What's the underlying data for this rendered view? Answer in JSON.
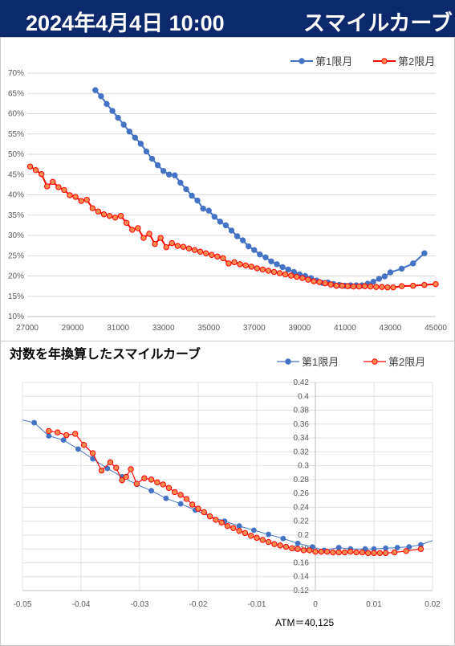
{
  "header": {
    "date": "2024年4月4日 10:00",
    "title": "スマイルカーブ"
  },
  "colors": {
    "header_bg": "#0c2a6b",
    "series1": "#4472c4",
    "series2": "#ff0000",
    "series2_fill": "#ff8a50"
  },
  "chart_data": [
    {
      "type": "line",
      "title": "",
      "x_ticks": [
        "27000",
        "29000",
        "31000",
        "33000",
        "35000",
        "37000",
        "39000",
        "41000",
        "43000",
        "45000"
      ],
      "y_ticks": [
        "10%",
        "15%",
        "20%",
        "25%",
        "30%",
        "35%",
        "40%",
        "45%",
        "50%",
        "55%",
        "60%",
        "65%",
        "70%"
      ],
      "xlim": [
        27000,
        45000
      ],
      "ylim": [
        10,
        70
      ],
      "grid": true,
      "legend": "top-right",
      "series": [
        {
          "name": "第1限月",
          "x": [
            30000,
            30250,
            30500,
            30750,
            31000,
            31250,
            31500,
            31750,
            32000,
            32250,
            32500,
            32750,
            33000,
            33250,
            33500,
            33750,
            34000,
            34250,
            34500,
            34750,
            35000,
            35250,
            35500,
            35750,
            36000,
            36250,
            36500,
            36750,
            37000,
            37250,
            37500,
            37750,
            38000,
            38250,
            38500,
            38750,
            39000,
            39250,
            39500,
            39750,
            40000,
            40250,
            40500,
            40750,
            41000,
            41250,
            41500,
            41750,
            42000,
            42250,
            42500,
            42750,
            43000,
            43500,
            44000,
            44500
          ],
          "y": [
            65.8,
            64.3,
            62.4,
            60.7,
            59.0,
            57.3,
            55.6,
            54.1,
            52.6,
            50.7,
            48.9,
            47.3,
            45.9,
            45.0,
            44.8,
            43.0,
            41.4,
            39.8,
            38.6,
            36.6,
            36.1,
            34.6,
            33.4,
            32.5,
            31.2,
            29.8,
            28.8,
            27.3,
            26.4,
            25.3,
            24.6,
            23.6,
            22.9,
            22.2,
            21.6,
            21.0,
            20.4,
            20.0,
            19.5,
            18.9,
            18.3,
            18.4,
            18.0,
            17.8,
            17.6,
            17.7,
            17.7,
            17.7,
            18.1,
            18.6,
            19.3,
            19.9,
            20.9,
            21.8,
            23.1,
            25.6
          ]
        },
        {
          "name": "第2限月",
          "x": [
            27125,
            27375,
            27625,
            27875,
            28125,
            28375,
            28625,
            28875,
            29125,
            29375,
            29625,
            29875,
            30125,
            30375,
            30625,
            30875,
            31125,
            31375,
            31625,
            31875,
            32125,
            32375,
            32625,
            32875,
            33125,
            33375,
            33625,
            33875,
            34125,
            34375,
            34625,
            34875,
            35125,
            35375,
            35625,
            35875,
            36125,
            36375,
            36625,
            36875,
            37125,
            37375,
            37625,
            37875,
            38125,
            38375,
            38625,
            38875,
            39125,
            39375,
            39625,
            39875,
            40125,
            40375,
            40625,
            40875,
            41125,
            41375,
            41625,
            41875,
            42125,
            42375,
            42625,
            42875,
            43125,
            43500,
            44000,
            44500,
            45000
          ],
          "y": [
            47.0,
            46.1,
            45.1,
            42.1,
            43.2,
            41.9,
            41.2,
            39.9,
            39.5,
            38.5,
            38.8,
            36.7,
            35.9,
            35.2,
            34.8,
            34.4,
            34.8,
            33.1,
            31.4,
            31.8,
            29.4,
            30.4,
            27.9,
            29.4,
            27.1,
            28.1,
            27.4,
            27.2,
            26.8,
            26.4,
            26.0,
            25.6,
            25.2,
            24.8,
            24.4,
            23.1,
            23.4,
            22.9,
            22.6,
            22.3,
            21.9,
            21.6,
            21.3,
            21.0,
            20.7,
            20.4,
            20.1,
            19.8,
            19.5,
            19.1,
            18.7,
            18.5,
            18.2,
            17.9,
            17.6,
            17.6,
            17.5,
            17.4,
            17.4,
            17.5,
            17.4,
            17.3,
            17.3,
            17.2,
            17.2,
            17.5,
            17.6,
            17.8,
            18.0
          ]
        }
      ]
    },
    {
      "type": "scatter",
      "title": "対数を年換算したスマイルカーブ",
      "x_ticks": [
        "-0.05",
        "-0.04",
        "-0.03",
        "-0.02",
        "-0.01",
        "0",
        "0.01",
        "0.02"
      ],
      "y_ticks": [
        "0.12",
        "0.14",
        "0.16",
        "0.18",
        "0.2",
        "0.22",
        "0.24",
        "0.26",
        "0.28",
        "0.3",
        "0.32",
        "0.34",
        "0.36",
        "0.38",
        "0.4",
        "0.42"
      ],
      "xlim": [
        -0.05,
        0.02
      ],
      "ylim": [
        0.12,
        0.42
      ],
      "grid": true,
      "legend": "top-right",
      "annotation": "ATM＝40,125",
      "series": [
        {
          "name": "第1限月",
          "x": [
            -0.048,
            -0.0455,
            -0.043,
            -0.0405,
            -0.038,
            -0.0355,
            -0.033,
            -0.0305,
            -0.028,
            -0.0255,
            -0.023,
            -0.0205,
            -0.018,
            -0.0155,
            -0.013,
            -0.0105,
            -0.008,
            -0.0055,
            -0.003,
            -0.0005,
            0.0015,
            0.004,
            0.006,
            0.0085,
            0.01,
            0.012,
            0.014,
            0.016,
            0.018
          ],
          "y": [
            0.362,
            0.343,
            0.337,
            0.324,
            0.31,
            0.296,
            0.284,
            0.273,
            0.264,
            0.253,
            0.245,
            0.236,
            0.227,
            0.22,
            0.213,
            0.207,
            0.201,
            0.195,
            0.188,
            0.183,
            0.178,
            0.182,
            0.18,
            0.18,
            0.18,
            0.181,
            0.182,
            0.183,
            0.186
          ]
        },
        {
          "name": "第2限月",
          "x": [
            -0.0455,
            -0.044,
            -0.0425,
            -0.041,
            -0.0395,
            -0.038,
            -0.0365,
            -0.035,
            -0.034,
            -0.033,
            -0.0323,
            -0.0315,
            -0.0305,
            -0.0292,
            -0.028,
            -0.027,
            -0.026,
            -0.025,
            -0.024,
            -0.023,
            -0.022,
            -0.021,
            -0.02,
            -0.019,
            -0.018,
            -0.017,
            -0.016,
            -0.015,
            -0.014,
            -0.013,
            -0.012,
            -0.011,
            -0.01,
            -0.009,
            -0.008,
            -0.007,
            -0.006,
            -0.005,
            -0.004,
            -0.003,
            -0.002,
            -0.001,
            0.0,
            0.001,
            0.002,
            0.003,
            0.004,
            0.005,
            0.006,
            0.007,
            0.008,
            0.009,
            0.01,
            0.011,
            0.012,
            0.0135,
            0.0155,
            0.018
          ],
          "y": [
            0.35,
            0.348,
            0.344,
            0.346,
            0.33,
            0.318,
            0.293,
            0.305,
            0.297,
            0.279,
            0.284,
            0.295,
            0.274,
            0.282,
            0.28,
            0.276,
            0.273,
            0.268,
            0.262,
            0.258,
            0.252,
            0.244,
            0.238,
            0.233,
            0.227,
            0.222,
            0.218,
            0.213,
            0.21,
            0.206,
            0.203,
            0.199,
            0.196,
            0.193,
            0.19,
            0.187,
            0.185,
            0.183,
            0.181,
            0.18,
            0.178,
            0.178,
            0.176,
            0.176,
            0.176,
            0.175,
            0.175,
            0.175,
            0.176,
            0.175,
            0.175,
            0.174,
            0.174,
            0.174,
            0.174,
            0.175,
            0.177,
            0.18
          ]
        }
      ]
    }
  ]
}
